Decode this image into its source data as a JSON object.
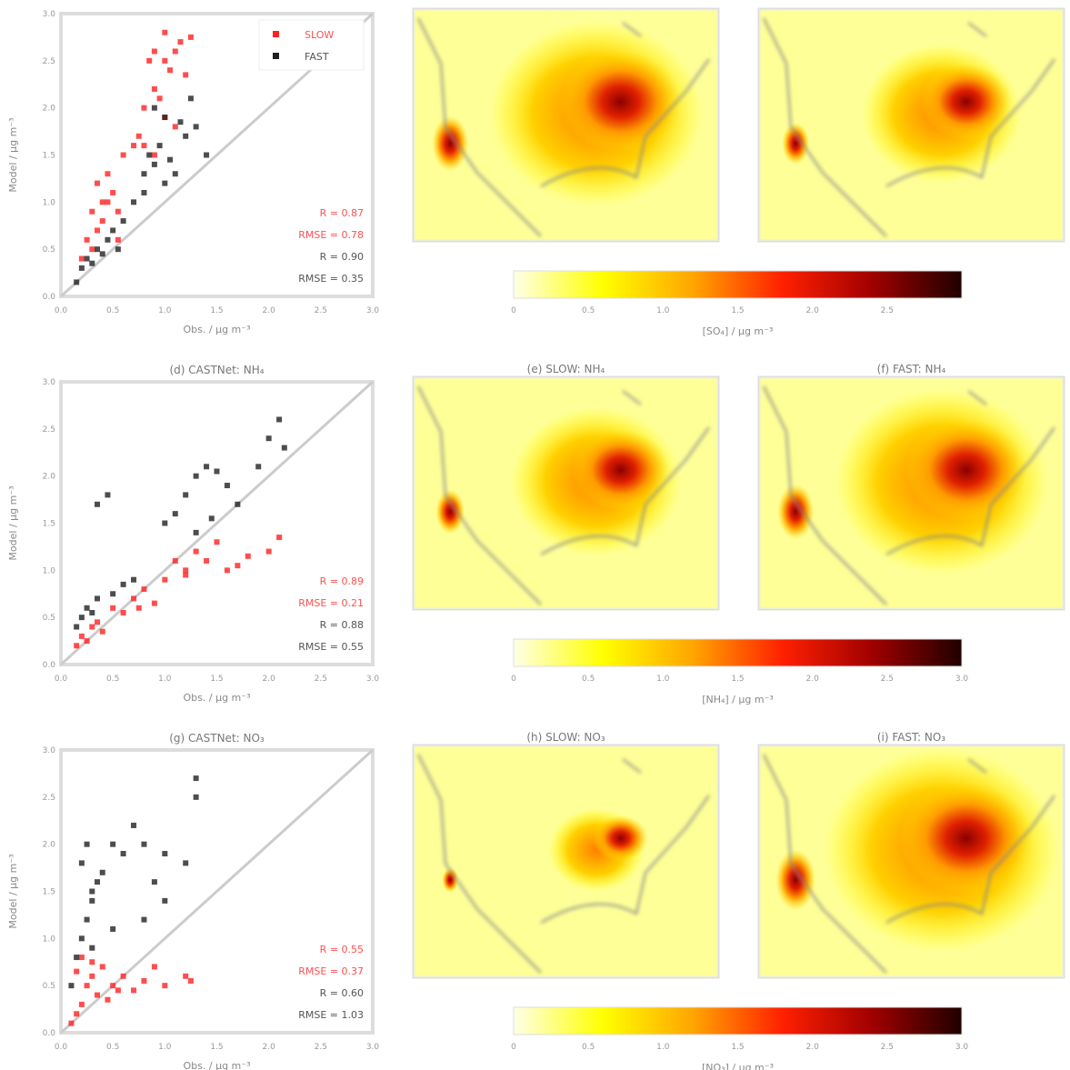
{
  "chart_data": [
    {
      "type": "scatter",
      "panel": "a",
      "title": "",
      "xlabel": "Obs. / µg m⁻³",
      "ylabel": "Model / µg m⁻³",
      "xlim": [
        0,
        3
      ],
      "ylim": [
        0,
        3
      ],
      "ticks": [
        "0.0",
        "0.5",
        "1.0",
        "1.5",
        "2.0",
        "2.5",
        "3.0"
      ],
      "legend": [
        "SLOW",
        "FAST"
      ],
      "legend_position": "top-right",
      "stats": [
        "R = 0.87",
        "RMSE = 0.78",
        "R = 0.90",
        "RMSE = 0.35"
      ],
      "series": [
        {
          "name": "SLOW",
          "color": "#ff2020",
          "x": [
            0.2,
            0.25,
            0.3,
            0.35,
            0.3,
            0.4,
            0.45,
            0.5,
            0.55,
            0.35,
            0.6,
            0.7,
            0.75,
            0.8,
            0.9,
            0.95,
            1.0,
            1.05,
            1.1,
            1.2,
            0.85,
            0.9,
            1.0,
            1.1,
            0.8,
            0.9,
            1.0,
            1.15,
            1.25,
            0.55,
            0.45,
            0.4
          ],
          "y": [
            0.4,
            0.6,
            0.5,
            0.7,
            0.9,
            0.8,
            1.0,
            1.1,
            0.6,
            1.2,
            1.5,
            1.6,
            1.7,
            2.0,
            2.2,
            2.1,
            2.5,
            2.4,
            2.6,
            2.35,
            2.5,
            2.6,
            1.9,
            1.8,
            1.6,
            1.5,
            2.8,
            2.7,
            2.75,
            0.9,
            1.3,
            1.0
          ]
        },
        {
          "name": "FAST",
          "color": "#202020",
          "x": [
            0.15,
            0.2,
            0.25,
            0.3,
            0.35,
            0.4,
            0.45,
            0.5,
            0.55,
            0.6,
            0.7,
            0.8,
            0.85,
            0.9,
            1.0,
            1.1,
            1.2,
            1.3,
            1.4,
            0.9,
            1.0,
            1.15,
            1.25,
            0.8,
            0.95,
            1.05
          ],
          "y": [
            0.15,
            0.3,
            0.4,
            0.35,
            0.5,
            0.45,
            0.6,
            0.7,
            0.5,
            0.8,
            1.0,
            1.3,
            1.5,
            1.4,
            1.2,
            1.3,
            1.7,
            1.8,
            1.5,
            2.0,
            1.9,
            1.85,
            2.1,
            1.1,
            1.6,
            1.45
          ]
        }
      ]
    },
    {
      "type": "scatter",
      "panel": "d",
      "title": "(d) CASTNet: NH₄",
      "xlabel": "Obs. / µg m⁻³",
      "ylabel": "Model / µg m⁻³",
      "xlim": [
        0,
        3
      ],
      "ylim": [
        0,
        3
      ],
      "ticks": [
        "0.0",
        "0.5",
        "1.0",
        "1.5",
        "2.0",
        "2.5",
        "3.0"
      ],
      "stats": [
        "R = 0.89",
        "RMSE = 0.21",
        "R = 0.88",
        "RMSE = 0.55"
      ],
      "series": [
        {
          "name": "SLOW",
          "color": "#ff2020",
          "x": [
            0.15,
            0.2,
            0.25,
            0.3,
            0.35,
            0.4,
            0.5,
            0.6,
            0.7,
            0.8,
            1.0,
            1.1,
            1.2,
            1.3,
            1.4,
            1.5,
            1.6,
            1.7,
            2.0,
            2.1,
            1.8,
            1.2,
            0.9,
            0.75
          ],
          "y": [
            0.2,
            0.3,
            0.25,
            0.4,
            0.45,
            0.35,
            0.6,
            0.55,
            0.7,
            0.8,
            0.9,
            1.1,
            1.0,
            1.2,
            1.1,
            1.3,
            1.0,
            1.05,
            1.2,
            1.35,
            1.15,
            0.95,
            0.65,
            0.6
          ]
        },
        {
          "name": "FAST",
          "color": "#202020",
          "x": [
            0.15,
            0.2,
            0.25,
            0.3,
            0.35,
            0.5,
            0.6,
            0.7,
            1.0,
            1.1,
            1.2,
            1.3,
            1.4,
            1.5,
            1.6,
            1.7,
            1.9,
            2.0,
            2.1,
            2.15,
            0.35,
            0.45,
            1.3,
            1.45
          ],
          "y": [
            0.4,
            0.5,
            0.6,
            0.55,
            0.7,
            0.75,
            0.85,
            0.9,
            1.5,
            1.6,
            1.8,
            2.0,
            2.1,
            2.05,
            1.9,
            1.7,
            2.1,
            2.4,
            2.6,
            2.3,
            1.7,
            1.8,
            1.4,
            1.55
          ]
        }
      ]
    },
    {
      "type": "scatter",
      "panel": "g",
      "title": "(g) CASTNet: NO₃",
      "xlabel": "Obs. / µg m⁻³",
      "ylabel": "Model / µg m⁻³",
      "xlim": [
        0,
        3
      ],
      "ylim": [
        0,
        3
      ],
      "ticks": [
        "0.0",
        "0.5",
        "1.0",
        "1.5",
        "2.0",
        "2.5",
        "3.0"
      ],
      "stats": [
        "R = 0.55",
        "RMSE = 0.37",
        "R = 0.60",
        "RMSE = 1.03"
      ],
      "series": [
        {
          "name": "SLOW",
          "color": "#ff2020",
          "x": [
            0.1,
            0.15,
            0.2,
            0.25,
            0.3,
            0.35,
            0.4,
            0.5,
            0.6,
            0.7,
            0.8,
            0.9,
            1.0,
            1.2,
            1.25,
            0.2,
            0.3,
            0.15,
            0.45,
            0.55
          ],
          "y": [
            0.1,
            0.2,
            0.3,
            0.5,
            0.6,
            0.4,
            0.7,
            0.5,
            0.6,
            0.45,
            0.55,
            0.7,
            0.5,
            0.6,
            0.55,
            0.8,
            0.75,
            0.65,
            0.35,
            0.45
          ]
        },
        {
          "name": "FAST",
          "color": "#202020",
          "x": [
            0.1,
            0.15,
            0.2,
            0.25,
            0.3,
            0.35,
            0.2,
            0.25,
            0.3,
            0.4,
            0.5,
            0.6,
            0.7,
            0.8,
            0.9,
            1.0,
            1.2,
            1.3,
            1.3,
            1.0,
            0.8,
            0.5,
            0.3
          ],
          "y": [
            0.5,
            0.8,
            1.0,
            1.2,
            1.4,
            1.6,
            1.8,
            2.0,
            1.5,
            1.7,
            2.0,
            1.9,
            2.2,
            2.0,
            1.6,
            1.9,
            1.8,
            2.5,
            2.7,
            1.4,
            1.2,
            1.1,
            0.9
          ]
        }
      ]
    }
  ],
  "maps": [
    {
      "title": "",
      "name": "slow-row1",
      "intensity": 1.0
    },
    {
      "title": "",
      "name": "fast-row1",
      "intensity": 0.75
    },
    {
      "title": "(e) SLOW: NH₄",
      "name": "slow-row2",
      "intensity": 0.8
    },
    {
      "title": "(f) FAST: NH₄",
      "name": "fast-row2",
      "intensity": 1.0
    },
    {
      "title": "(h) SLOW: NO₃",
      "name": "slow-row3",
      "intensity": 0.45
    },
    {
      "title": "(i) FAST: NO₃",
      "name": "fast-row3",
      "intensity": 1.1
    }
  ],
  "colorbars": [
    {
      "label": "[SO₄] / µg m⁻³",
      "ticks": [
        "0",
        "0.5",
        "1.0",
        "1.5",
        "2.0",
        "2.5"
      ]
    },
    {
      "label": "[NH₄] / µg m⁻³",
      "ticks": [
        "0",
        "0.5",
        "1.0",
        "1.5",
        "2.0",
        "2.5",
        "3.0"
      ]
    },
    {
      "label": "[NO₃] / µg m⁻³",
      "ticks": [
        "0",
        "0.5",
        "1.0",
        "1.5",
        "2.0",
        "2.5",
        "3.0"
      ]
    }
  ]
}
